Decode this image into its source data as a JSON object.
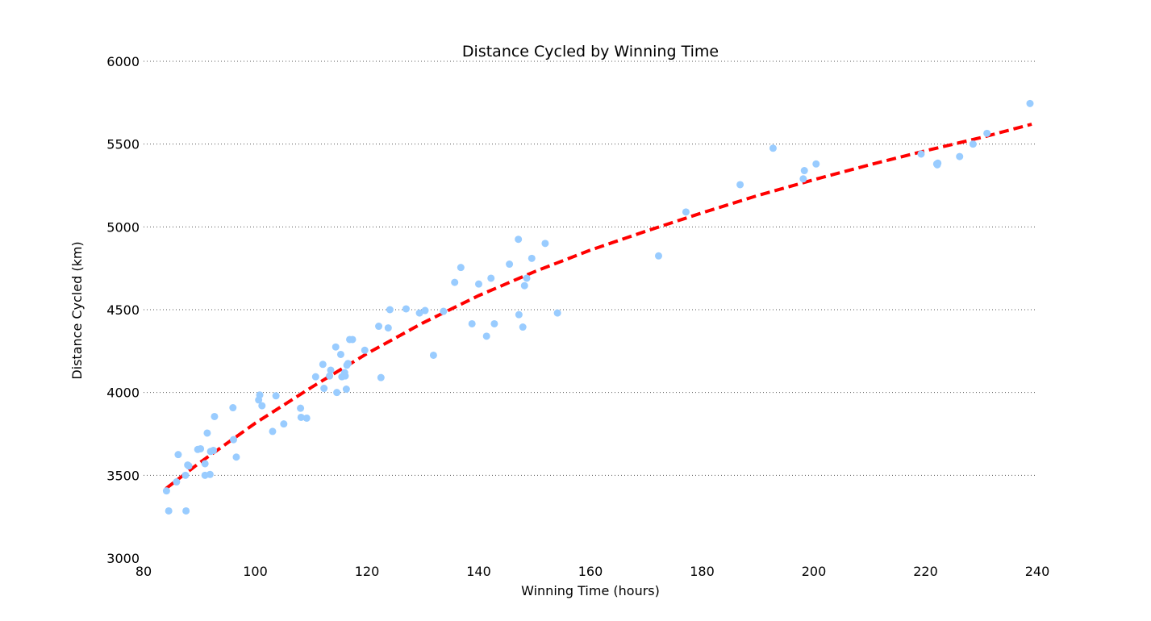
{
  "chart_data": {
    "type": "scatter",
    "title": "Distance Cycled by Winning Time",
    "xlabel": "Winning Time (hours)",
    "ylabel": "Distance Cycled (km)",
    "xlim": [
      80,
      240
    ],
    "ylim": [
      3000,
      6000
    ],
    "xticks": [
      80,
      100,
      120,
      140,
      160,
      180,
      200,
      220,
      240
    ],
    "yticks": [
      3000,
      3500,
      4000,
      4500,
      5000,
      5500,
      6000
    ],
    "grid": "horizontal dotted",
    "colors": {
      "points": "#99ccff",
      "trend": "#ff0000",
      "grid": "#555555"
    },
    "series": [
      {
        "kind": "points",
        "x": [
          84.1,
          84.5,
          85.9,
          86.2,
          87.5,
          87.6,
          87.9,
          88.1,
          89.7,
          90.2,
          91.0,
          91.0,
          91.4,
          91.9,
          92.0,
          92.5,
          92.7,
          96.0,
          96.1,
          96.6,
          100.6,
          100.8,
          101.2,
          103.1,
          103.7,
          105.1,
          108.1,
          108.2,
          109.2,
          110.8,
          112.1,
          112.3,
          113.3,
          113.5,
          114.4,
          114.6,
          115.3,
          115.5,
          116.0,
          116.1,
          116.3,
          116.4,
          116.6,
          116.9,
          117.4,
          119.6,
          122.1,
          122.5,
          123.8,
          124.1,
          127.0,
          129.4,
          130.4,
          131.9,
          133.7,
          135.7,
          136.8,
          138.8,
          140.0,
          141.4,
          142.2,
          142.8,
          145.5,
          147.1,
          147.2,
          147.9,
          148.2,
          148.6,
          149.5,
          151.9,
          154.1,
          172.2,
          177.1,
          186.8,
          192.7,
          198.1,
          198.3,
          200.4,
          219.2,
          222.0,
          222.1,
          222.2,
          226.1,
          228.5,
          231.0,
          238.7
        ],
        "y": [
          3406,
          3285,
          3460,
          3625,
          3500,
          3285,
          3562,
          3556,
          3656,
          3660,
          3500,
          3570,
          3755,
          3505,
          3644,
          3650,
          3855,
          3908,
          3715,
          3610,
          3955,
          3985,
          3920,
          3765,
          3980,
          3810,
          3905,
          3850,
          3845,
          4095,
          4170,
          4025,
          4100,
          4135,
          4275,
          4000,
          4230,
          4095,
          4120,
          4100,
          4020,
          4165,
          4175,
          4320,
          4320,
          4255,
          4400,
          4090,
          4390,
          4500,
          4505,
          4480,
          4495,
          4225,
          4490,
          4665,
          4755,
          4415,
          4655,
          4340,
          4690,
          4415,
          4775,
          4925,
          4470,
          4395,
          4645,
          4690,
          4810,
          4900,
          4480,
          4825,
          5090,
          5255,
          5475,
          5290,
          5340,
          5380,
          5440,
          5380,
          5375,
          5385,
          5425,
          5500,
          5565,
          5745
        ]
      },
      {
        "kind": "trend",
        "x": [
          84,
          90,
          100,
          110,
          120,
          130,
          140,
          150,
          160,
          170,
          180,
          190,
          200,
          210,
          220,
          230,
          239
        ],
        "y": [
          3420,
          3575,
          3815,
          4030,
          4235,
          4420,
          4585,
          4730,
          4860,
          4975,
          5085,
          5190,
          5285,
          5375,
          5460,
          5540,
          5620
        ]
      }
    ]
  }
}
